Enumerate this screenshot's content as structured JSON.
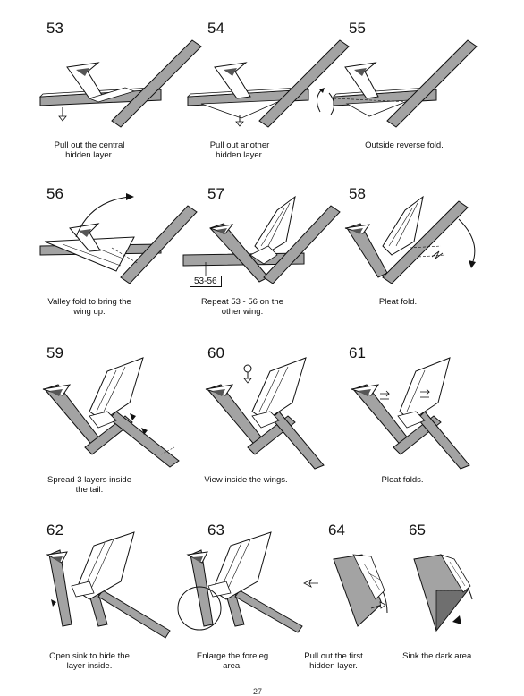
{
  "page_number": "27",
  "steps": [
    {
      "num": "53",
      "caption": "Pull out the central\nhidden layer."
    },
    {
      "num": "54",
      "caption": "Pull out another\nhidden layer."
    },
    {
      "num": "55",
      "caption": "Outside reverse fold."
    },
    {
      "num": "56",
      "caption": "Valley fold to bring the\nwing up."
    },
    {
      "num": "57",
      "caption": "Repeat 53 - 56 on the\nother wing.",
      "ref_label": "53-56"
    },
    {
      "num": "58",
      "caption": "Pleat fold."
    },
    {
      "num": "59",
      "caption": "Spread 3 layers inside\nthe tail."
    },
    {
      "num": "60",
      "caption": "View inside the wings."
    },
    {
      "num": "61",
      "caption": "Pleat folds."
    },
    {
      "num": "62",
      "caption": "Open sink to hide the\nlayer inside."
    },
    {
      "num": "63",
      "caption": "Enlarge the foreleg\narea."
    },
    {
      "num": "64",
      "caption": "Pull out the first\nhidden layer."
    },
    {
      "num": "65",
      "caption": "Sink the dark area."
    }
  ],
  "colors": {
    "paper_grey": "#a3a3a3",
    "paper_white": "#ffffff",
    "line": "#111111",
    "dark": "#6f6f6f"
  }
}
